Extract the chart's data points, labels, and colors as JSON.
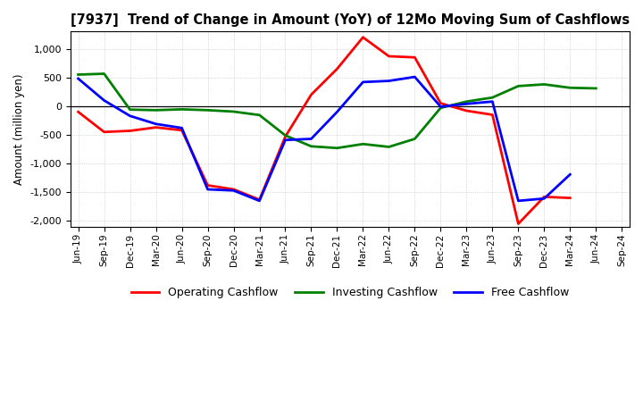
{
  "title": "[7937]  Trend of Change in Amount (YoY) of 12Mo Moving Sum of Cashflows",
  "ylabel": "Amount (million yen)",
  "x_labels": [
    "Jun-19",
    "Sep-19",
    "Dec-19",
    "Mar-20",
    "Jun-20",
    "Sep-20",
    "Dec-20",
    "Mar-21",
    "Jun-21",
    "Sep-21",
    "Dec-21",
    "Mar-22",
    "Jun-22",
    "Sep-22",
    "Dec-22",
    "Mar-23",
    "Jun-23",
    "Sep-23",
    "Dec-23",
    "Mar-24",
    "Jun-24",
    "Sep-24"
  ],
  "operating": [
    -100,
    -450,
    -430,
    -370,
    -420,
    -1380,
    -1450,
    -1630,
    -530,
    200,
    650,
    1200,
    870,
    850,
    50,
    -80,
    -150,
    -2050,
    -1580,
    -1600,
    null,
    null
  ],
  "investing": [
    550,
    565,
    -60,
    -70,
    -55,
    -70,
    -95,
    -155,
    -510,
    -700,
    -730,
    -660,
    -710,
    -570,
    -30,
    80,
    150,
    350,
    380,
    320,
    310,
    null
  ],
  "free": [
    480,
    100,
    -170,
    -310,
    -380,
    -1450,
    -1470,
    -1650,
    -590,
    -570,
    -100,
    420,
    440,
    510,
    -10,
    40,
    80,
    -1650,
    -1610,
    -1190,
    null,
    null
  ],
  "ylim": [
    -2100,
    1300
  ],
  "yticks": [
    -2000,
    -1500,
    -1000,
    -500,
    0,
    500,
    1000
  ],
  "colors": {
    "operating": "#ff0000",
    "investing": "#008000",
    "free": "#0000ff"
  },
  "legend_labels": [
    "Operating Cashflow",
    "Investing Cashflow",
    "Free Cashflow"
  ],
  "background_color": "#ffffff",
  "grid_color": "#bbbbbb"
}
